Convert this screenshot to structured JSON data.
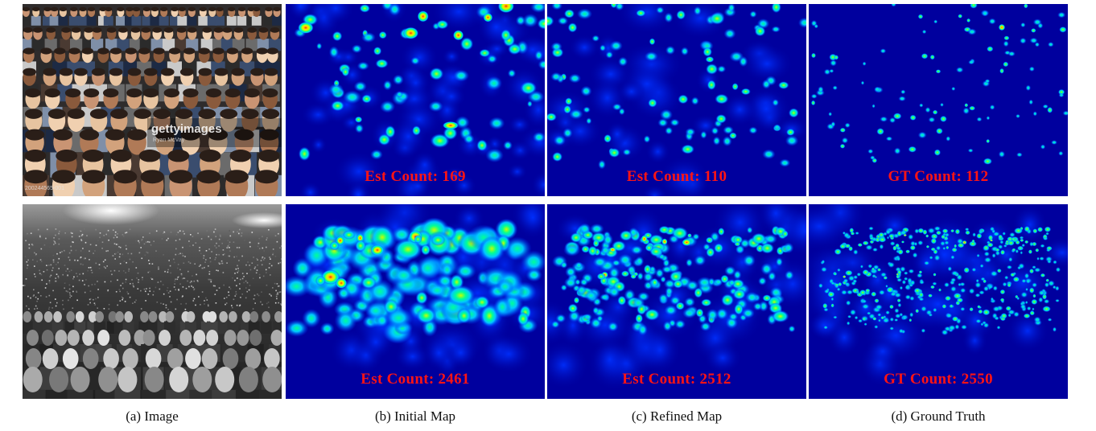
{
  "figure": {
    "captions": {
      "a": "(a) Image",
      "b": "(b) Initial Map",
      "c": "(c) Refined Map",
      "d": "(d) Ground Truth"
    },
    "rows": [
      {
        "image_watermark": {
          "logo": "gettyimages",
          "credit": "Ryan McVay",
          "id": "200244565-001"
        },
        "initial_label": "Est Count:  169",
        "refined_label": "Est Count:  110",
        "gt_label": "GT Count:  112",
        "initial_count": 169,
        "refined_count": 110,
        "gt_count": 112
      },
      {
        "initial_label": "Est Count:  2461",
        "refined_label": "Est Count:  2512",
        "gt_label": "GT Count:  2550",
        "initial_count": 2461,
        "refined_count": 2512,
        "gt_count": 2550
      }
    ],
    "colors": {
      "label": "#ff1414",
      "heatmap_background": "#00009e",
      "heatmap_scale": [
        "#00009e",
        "#0030ff",
        "#00c8ff",
        "#00ff96",
        "#c8ff00",
        "#ffd200",
        "#ff2a00"
      ]
    }
  }
}
